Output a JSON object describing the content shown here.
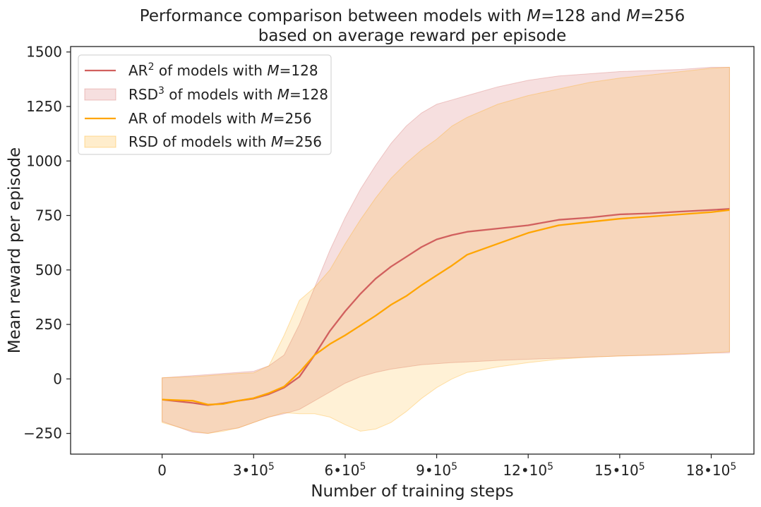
{
  "chart_data": {
    "type": "line",
    "title_line1_parts": [
      "Performance comparison between models with ",
      "M",
      "=128 and ",
      "M",
      "=256"
    ],
    "title_line2": "based on average reward per episode",
    "xlabel": "Number of training steps",
    "ylabel": "Mean reward per episode",
    "xlim": [
      -300000,
      1940000
    ],
    "ylim": [
      -345,
      1525
    ],
    "x_ticks": [
      {
        "value": 0,
        "label": "0",
        "exp": ""
      },
      {
        "value": 300000,
        "label": "3•10",
        "exp": "5"
      },
      {
        "value": 600000,
        "label": "6•10",
        "exp": "5"
      },
      {
        "value": 900000,
        "label": "9•10",
        "exp": "5"
      },
      {
        "value": 1200000,
        "label": "12•10",
        "exp": "5"
      },
      {
        "value": 1500000,
        "label": "15•10",
        "exp": "5"
      },
      {
        "value": 1800000,
        "label": "18•10",
        "exp": "5"
      }
    ],
    "y_ticks": [
      {
        "value": -250,
        "label": "−250"
      },
      {
        "value": 0,
        "label": "0"
      },
      {
        "value": 250,
        "label": "250"
      },
      {
        "value": 500,
        "label": "500"
      },
      {
        "value": 750,
        "label": "750"
      },
      {
        "value": 1000,
        "label": "1000"
      },
      {
        "value": 1250,
        "label": "1250"
      },
      {
        "value": 1500,
        "label": "1500"
      }
    ],
    "x": [
      0,
      100000,
      150000,
      200000,
      250000,
      300000,
      350000,
      400000,
      450000,
      500000,
      550000,
      600000,
      650000,
      700000,
      750000,
      800000,
      850000,
      900000,
      950000,
      1000000,
      1100000,
      1200000,
      1300000,
      1400000,
      1500000,
      1600000,
      1700000,
      1800000,
      1860000
    ],
    "series": [
      {
        "name": "AR of models with M=128",
        "color": "#d1605e",
        "values": [
          -95,
          -110,
          -120,
          -112,
          -100,
          -90,
          -70,
          -40,
          10,
          110,
          220,
          310,
          390,
          460,
          515,
          560,
          605,
          640,
          660,
          675,
          690,
          705,
          730,
          740,
          755,
          760,
          768,
          775,
          780
        ],
        "band_lower": [
          -195,
          -245,
          -250,
          -235,
          -225,
          -200,
          -175,
          -160,
          -140,
          -100,
          -60,
          -20,
          10,
          30,
          45,
          55,
          65,
          70,
          75,
          78,
          85,
          90,
          95,
          100,
          105,
          108,
          112,
          118,
          120
        ],
        "band_upper": [
          5,
          15,
          20,
          25,
          30,
          35,
          60,
          110,
          250,
          420,
          590,
          740,
          870,
          980,
          1080,
          1160,
          1220,
          1260,
          1280,
          1300,
          1340,
          1370,
          1390,
          1400,
          1410,
          1415,
          1420,
          1430,
          1430
        ]
      },
      {
        "name": "AR of models with M=256",
        "color": "#ffa500",
        "values": [
          -95,
          -100,
          -118,
          -115,
          -100,
          -88,
          -65,
          -35,
          30,
          110,
          160,
          200,
          245,
          290,
          340,
          380,
          430,
          475,
          520,
          570,
          620,
          670,
          705,
          720,
          735,
          745,
          755,
          765,
          775
        ],
        "band_lower": [
          -200,
          -240,
          -250,
          -240,
          -225,
          -200,
          -175,
          -155,
          -160,
          -160,
          -175,
          -210,
          -240,
          -230,
          -200,
          -150,
          -90,
          -40,
          0,
          30,
          55,
          75,
          90,
          100,
          105,
          110,
          115,
          120,
          125
        ],
        "band_upper": [
          5,
          10,
          15,
          20,
          25,
          28,
          60,
          200,
          360,
          420,
          500,
          620,
          730,
          830,
          920,
          990,
          1050,
          1100,
          1160,
          1200,
          1260,
          1300,
          1330,
          1360,
          1380,
          1395,
          1410,
          1425,
          1430
        ]
      }
    ],
    "legend": {
      "placement": "upper-left",
      "entries": [
        {
          "kind": "line",
          "color": "#d1605e",
          "parts": [
            "AR",
            "2",
            " of models with ",
            "M",
            "=128"
          ]
        },
        {
          "kind": "band",
          "color": "#d1605e",
          "parts": [
            "RSD",
            "3",
            " of models with ",
            "M",
            "=128"
          ]
        },
        {
          "kind": "line",
          "color": "#ffa500",
          "parts": [
            "AR of models with ",
            "",
            "",
            "M",
            "=256"
          ]
        },
        {
          "kind": "band",
          "color": "#ffa500",
          "parts": [
            "RSD of models with ",
            "",
            "",
            "M",
            "=256"
          ]
        }
      ]
    }
  }
}
